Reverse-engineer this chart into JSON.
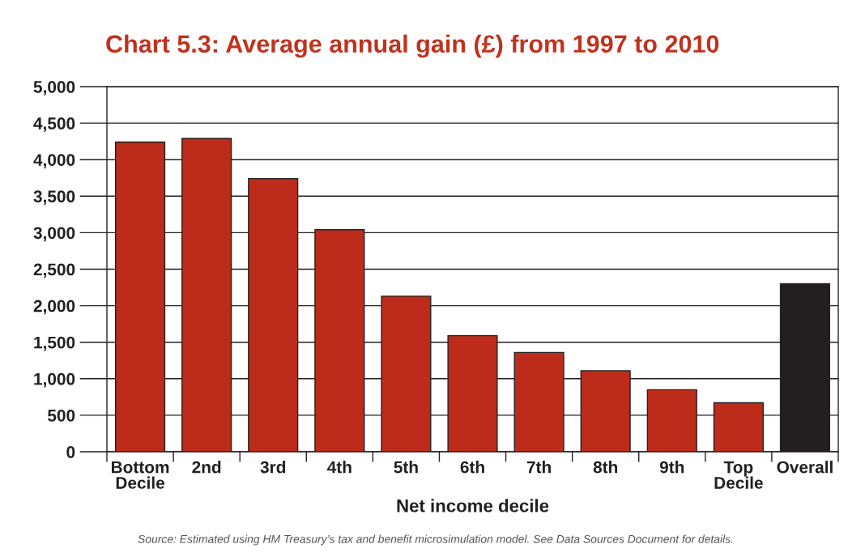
{
  "chart_data": {
    "type": "bar",
    "title": "Chart 5.3: Average annual gain (£) from 1997 to 2010",
    "xlabel": "Net income decile",
    "categories": [
      "Bottom\nDecile",
      "2nd",
      "3rd",
      "4th",
      "5th",
      "6th",
      "7th",
      "8th",
      "9th",
      "Top\nDecile",
      "Overall"
    ],
    "values": [
      4240,
      4290,
      3740,
      3040,
      2130,
      1590,
      1360,
      1110,
      850,
      670,
      2300
    ],
    "colors": [
      "#bd2c1a",
      "#bd2c1a",
      "#bd2c1a",
      "#bd2c1a",
      "#bd2c1a",
      "#bd2c1a",
      "#bd2c1a",
      "#bd2c1a",
      "#bd2c1a",
      "#bd2c1a",
      "#231f20"
    ],
    "ylim": [
      0,
      5000
    ],
    "yticks": [
      0,
      500,
      {
        "value": 1000,
        "label": "1,000"
      },
      {
        "value": 1500,
        "label": "1,500"
      },
      {
        "value": 2000,
        "label": "2,000"
      },
      {
        "value": 2500,
        "label": "2,500"
      },
      {
        "value": 3000,
        "label": "3,000"
      },
      {
        "value": 3500,
        "label": "3,500"
      },
      {
        "value": 4000,
        "label": "4,000"
      },
      {
        "value": 4500,
        "label": "4,500"
      },
      {
        "value": 5000,
        "label": "5,000"
      }
    ],
    "grid": "y",
    "annotations": [
      "Source: Estimated using HM Treasury’s tax and benefit microsimulation model. See Data Sources Document for details."
    ]
  }
}
